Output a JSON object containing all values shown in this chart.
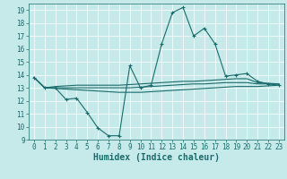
{
  "xlabel": "Humidex (Indice chaleur)",
  "ylabel": "",
  "xlim": [
    -0.5,
    23.5
  ],
  "ylim": [
    9,
    19.5
  ],
  "xticks": [
    0,
    1,
    2,
    3,
    4,
    5,
    6,
    7,
    8,
    9,
    10,
    11,
    12,
    13,
    14,
    15,
    16,
    17,
    18,
    19,
    20,
    21,
    22,
    23
  ],
  "yticks": [
    9,
    10,
    11,
    12,
    13,
    14,
    15,
    16,
    17,
    18,
    19
  ],
  "bg_color": "#c6eaea",
  "line_color": "#1a6b6b",
  "grid_color": "#ffffff",
  "lines": [
    {
      "x": [
        0,
        1,
        2,
        3,
        4,
        5,
        6,
        7,
        8,
        9,
        10,
        11,
        12,
        13,
        14,
        15,
        16,
        17,
        18,
        19,
        20,
        21,
        22,
        23
      ],
      "y": [
        13.8,
        13.0,
        13.0,
        12.1,
        12.2,
        11.1,
        9.9,
        9.3,
        9.3,
        14.7,
        13.0,
        13.2,
        16.4,
        18.8,
        19.2,
        17.0,
        17.6,
        16.4,
        13.9,
        14.0,
        14.1,
        13.5,
        13.3,
        13.2
      ],
      "marker": "+"
    },
    {
      "x": [
        0,
        1,
        2,
        3,
        4,
        5,
        6,
        7,
        8,
        9,
        10,
        11,
        12,
        13,
        14,
        15,
        16,
        17,
        18,
        19,
        20,
        21,
        22,
        23
      ],
      "y": [
        13.8,
        13.0,
        13.1,
        13.15,
        13.2,
        13.2,
        13.2,
        13.2,
        13.2,
        13.25,
        13.3,
        13.35,
        13.4,
        13.45,
        13.5,
        13.5,
        13.55,
        13.6,
        13.65,
        13.7,
        13.7,
        13.4,
        13.35,
        13.3
      ],
      "marker": null
    },
    {
      "x": [
        0,
        1,
        2,
        3,
        4,
        5,
        6,
        7,
        8,
        9,
        10,
        11,
        12,
        13,
        14,
        15,
        16,
        17,
        18,
        19,
        20,
        21,
        22,
        23
      ],
      "y": [
        13.8,
        13.0,
        13.0,
        13.0,
        13.0,
        13.0,
        13.0,
        13.0,
        13.0,
        13.0,
        13.05,
        13.1,
        13.15,
        13.2,
        13.25,
        13.3,
        13.3,
        13.35,
        13.4,
        13.4,
        13.4,
        13.3,
        13.3,
        13.3
      ],
      "marker": null
    },
    {
      "x": [
        0,
        1,
        2,
        3,
        4,
        5,
        6,
        7,
        8,
        9,
        10,
        11,
        12,
        13,
        14,
        15,
        16,
        17,
        18,
        19,
        20,
        21,
        22,
        23
      ],
      "y": [
        13.8,
        13.0,
        12.95,
        12.9,
        12.85,
        12.8,
        12.75,
        12.7,
        12.65,
        12.65,
        12.65,
        12.7,
        12.75,
        12.8,
        12.85,
        12.9,
        12.95,
        13.0,
        13.05,
        13.1,
        13.1,
        13.1,
        13.15,
        13.2
      ],
      "marker": null
    }
  ],
  "tick_fontsize": 5.5,
  "label_fontsize": 7.0
}
